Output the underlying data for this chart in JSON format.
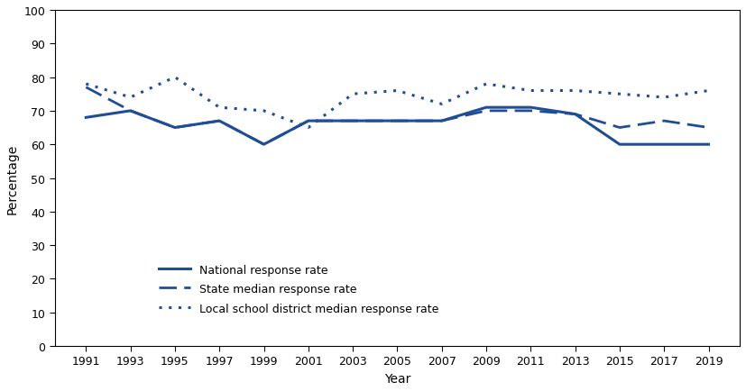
{
  "years": [
    1991,
    1993,
    1995,
    1997,
    1999,
    2001,
    2003,
    2005,
    2007,
    2009,
    2011,
    2013,
    2015,
    2017,
    2019
  ],
  "national": [
    68,
    70,
    65,
    67,
    60,
    67,
    67,
    67,
    67,
    71,
    71,
    69,
    60,
    60,
    60
  ],
  "state_median": [
    77,
    70,
    65,
    67,
    60,
    67,
    67,
    67,
    67,
    70,
    70,
    69,
    65,
    67,
    65
  ],
  "local_median": [
    78,
    74,
    80,
    71,
    70,
    65,
    75,
    76,
    72,
    78,
    76,
    76,
    75,
    74,
    76
  ],
  "line_color": "#1F4E96",
  "ylabel": "Percentage",
  "xlabel": "Year",
  "ylim": [
    0,
    100
  ],
  "yticks": [
    0,
    10,
    20,
    30,
    40,
    50,
    60,
    70,
    80,
    90,
    100
  ],
  "legend_labels": [
    "National response rate",
    "State median response rate",
    "Local school district median response rate"
  ],
  "axis_fontsize": 10,
  "legend_fontsize": 9,
  "tick_fontsize": 9
}
